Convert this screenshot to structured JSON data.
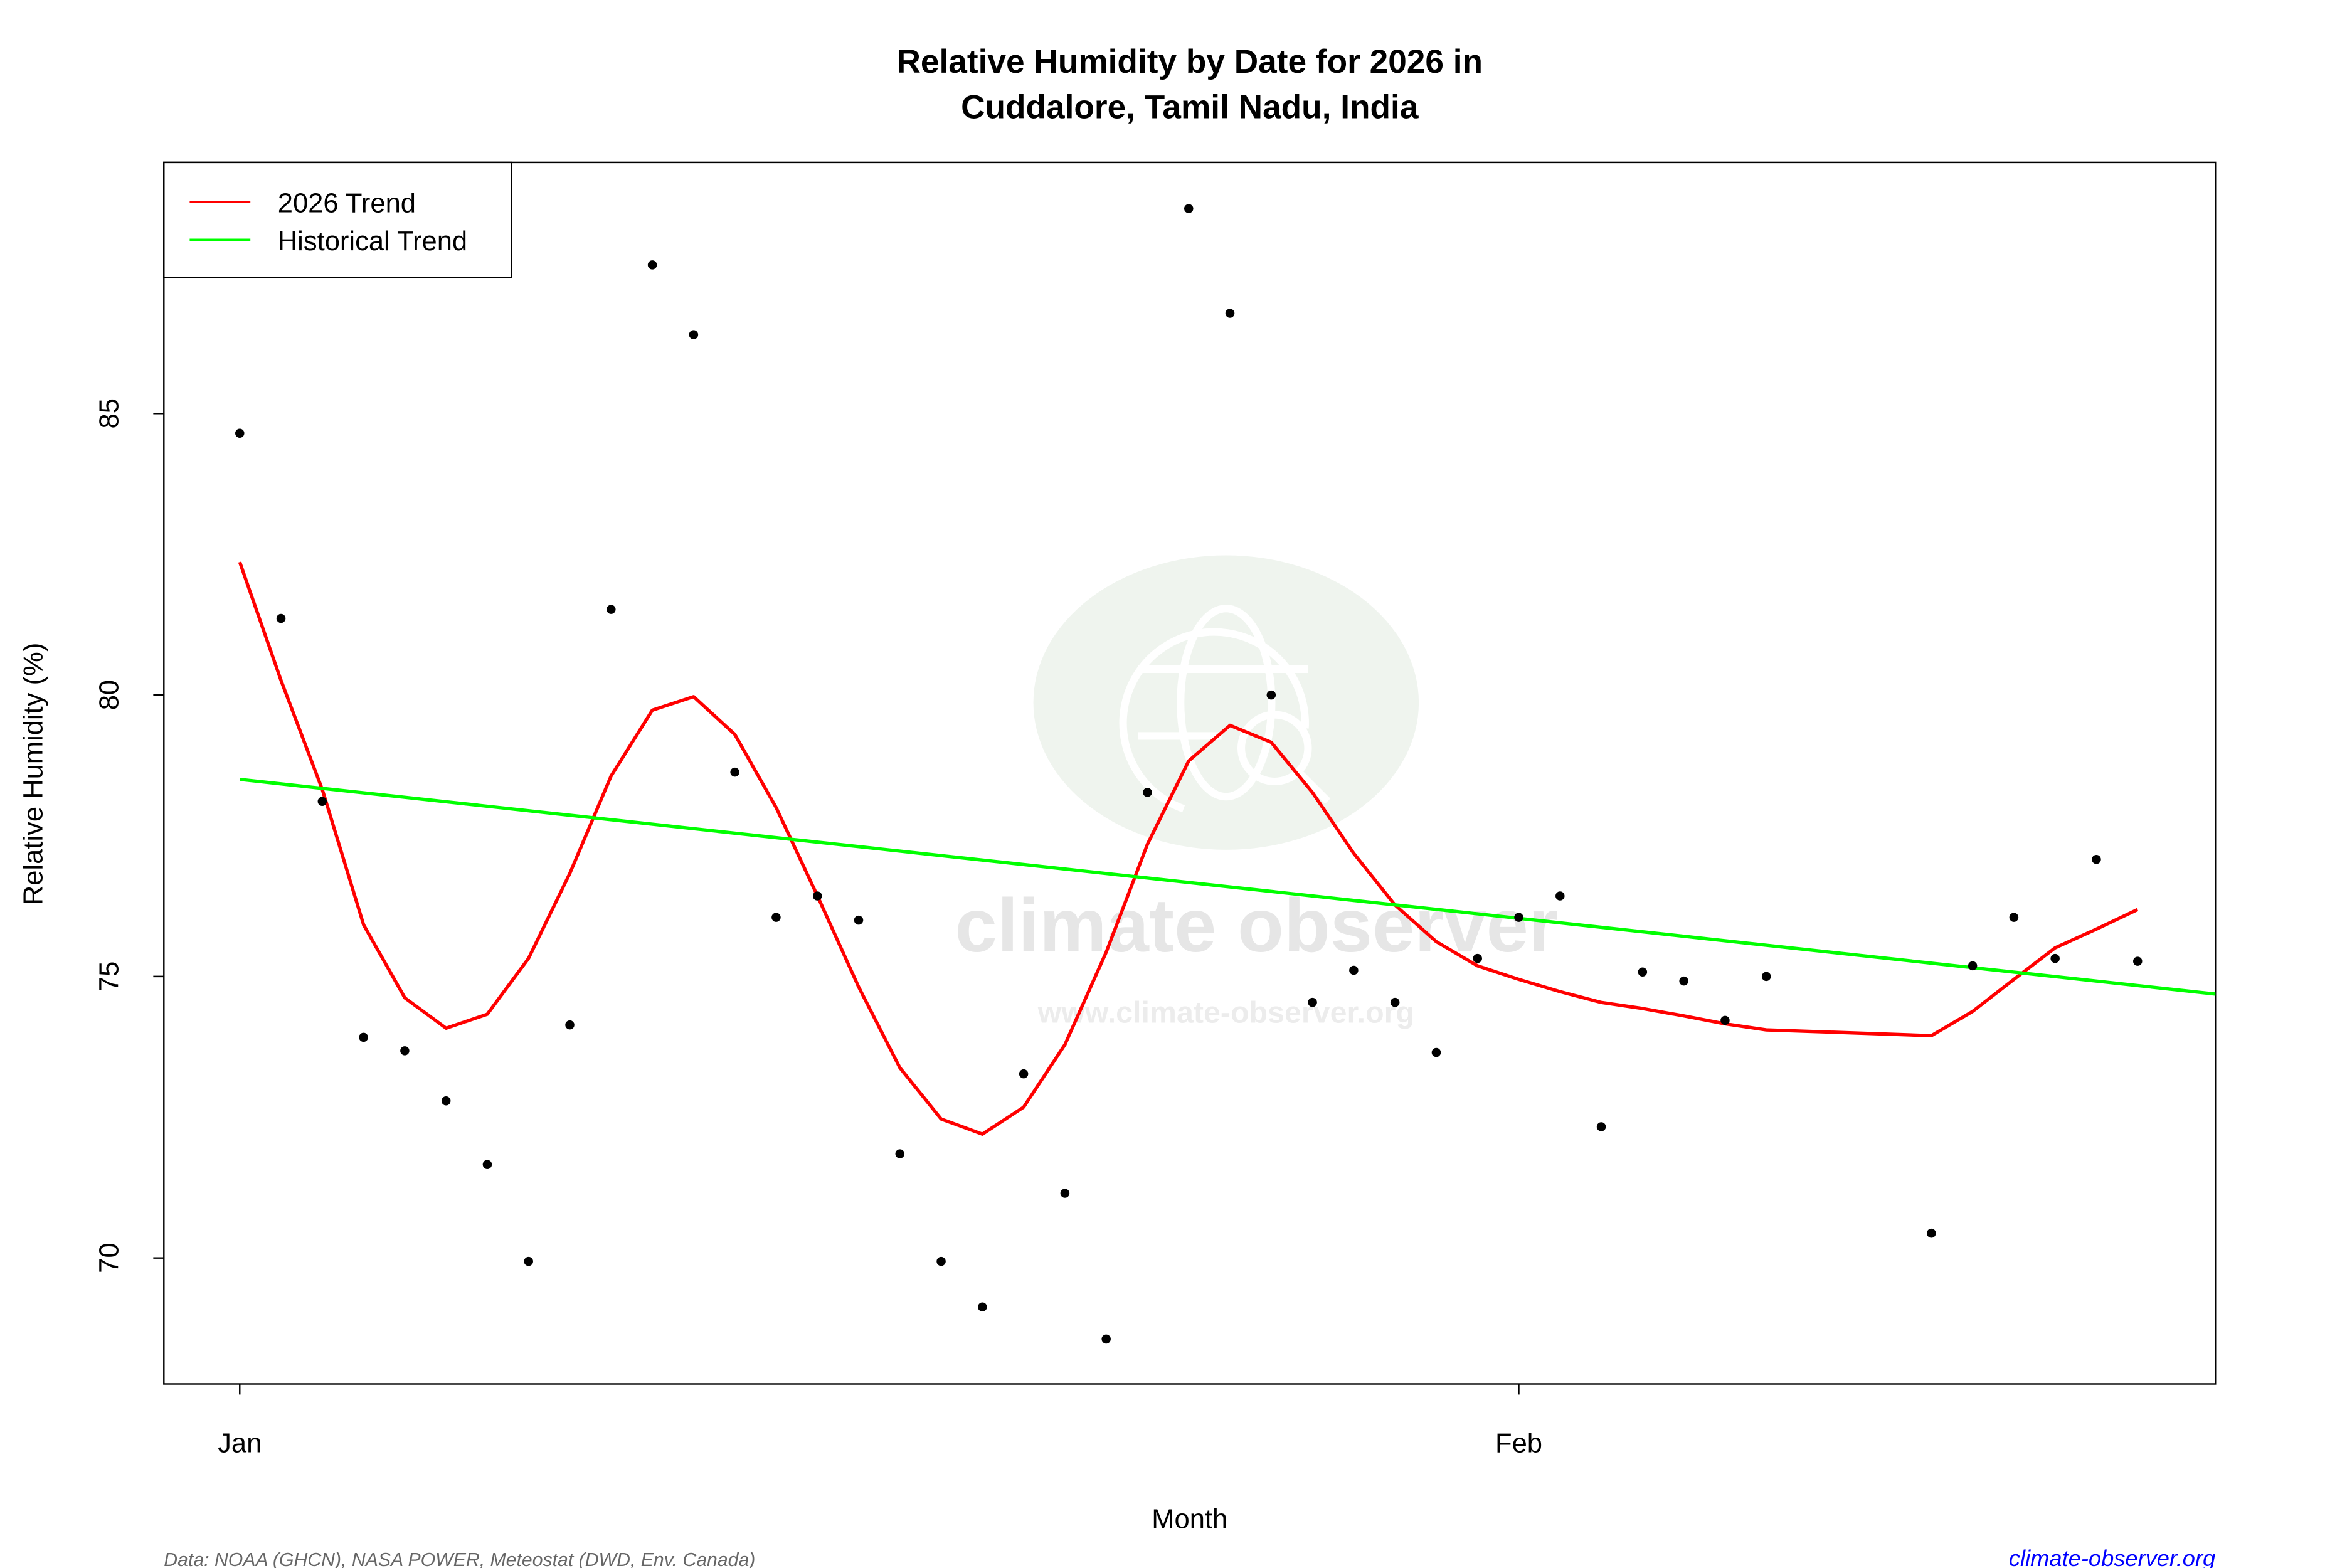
{
  "chart_data": {
    "type": "scatter",
    "title": "Relative Humidity by Date for 2026 in",
    "subtitle": "Cuddalore, Tamil Nadu, India",
    "xlabel": "Month",
    "ylabel": "Relative Humidity (%)",
    "x_ticks": [
      {
        "date": "2026-01-01",
        "label": "Jan"
      },
      {
        "date": "2026-02-01",
        "label": "Feb"
      }
    ],
    "y_ticks": [
      70,
      75,
      80,
      85
    ],
    "ylim": [
      67.8,
      89.4
    ],
    "grid": false,
    "legend": {
      "placement": "top-left",
      "entries": [
        {
          "label": "2026 Trend",
          "color": "#ff0000"
        },
        {
          "label": "Historical Trend",
          "color": "#00ff00"
        }
      ]
    },
    "observations": {
      "color": "#000000",
      "points": [
        {
          "x": "2026-01-01",
          "y": 84.65
        },
        {
          "x": "2026-01-02",
          "y": 81.36
        },
        {
          "x": "2026-01-03",
          "y": 78.11
        },
        {
          "x": "2026-01-04",
          "y": 73.92
        },
        {
          "x": "2026-01-05",
          "y": 73.68
        },
        {
          "x": "2026-01-06",
          "y": 72.79
        },
        {
          "x": "2026-01-07",
          "y": 71.66
        },
        {
          "x": "2026-01-08",
          "y": 69.94
        },
        {
          "x": "2026-01-09",
          "y": 74.14
        },
        {
          "x": "2026-01-10",
          "y": 81.52
        },
        {
          "x": "2026-01-11",
          "y": 87.64
        },
        {
          "x": "2026-01-12",
          "y": 86.4
        },
        {
          "x": "2026-01-13",
          "y": 78.63
        },
        {
          "x": "2026-01-14",
          "y": 76.05
        },
        {
          "x": "2026-01-15",
          "y": 76.43
        },
        {
          "x": "2026-01-16",
          "y": 76.0
        },
        {
          "x": "2026-01-17",
          "y": 71.85
        },
        {
          "x": "2026-01-18",
          "y": 69.94
        },
        {
          "x": "2026-01-19",
          "y": 69.13
        },
        {
          "x": "2026-01-20",
          "y": 73.27
        },
        {
          "x": "2026-01-21",
          "y": 71.15
        },
        {
          "x": "2026-01-22",
          "y": 68.56
        },
        {
          "x": "2026-01-23",
          "y": 78.27
        },
        {
          "x": "2026-01-24",
          "y": 88.64
        },
        {
          "x": "2026-01-25",
          "y": 86.78
        },
        {
          "x": "2026-01-26",
          "y": 80.0
        },
        {
          "x": "2026-01-27",
          "y": 74.54
        },
        {
          "x": "2026-01-28",
          "y": 75.11
        },
        {
          "x": "2026-01-29",
          "y": 74.54
        },
        {
          "x": "2026-01-30",
          "y": 73.65
        },
        {
          "x": "2026-01-31",
          "y": 75.32
        },
        {
          "x": "2026-02-01",
          "y": 76.05
        },
        {
          "x": "2026-02-02",
          "y": 76.43
        },
        {
          "x": "2026-02-03",
          "y": 72.33
        },
        {
          "x": "2026-02-04",
          "y": 75.08
        },
        {
          "x": "2026-02-05",
          "y": 74.92
        },
        {
          "x": "2026-02-06",
          "y": 74.22
        },
        {
          "x": "2026-02-07",
          "y": 75.0
        },
        {
          "x": "2026-02-11",
          "y": 70.44
        },
        {
          "x": "2026-02-12",
          "y": 75.19
        },
        {
          "x": "2026-02-13",
          "y": 76.05
        },
        {
          "x": "2026-02-14",
          "y": 75.32
        },
        {
          "x": "2026-02-15",
          "y": 77.08
        },
        {
          "x": "2026-02-16",
          "y": 75.27
        }
      ]
    },
    "series": [
      {
        "name": "2026 Trend",
        "type": "line",
        "color": "#ff0000",
        "points": [
          {
            "x": "2026-01-01",
            "y": 82.36
          },
          {
            "x": "2026-01-02",
            "y": 80.26
          },
          {
            "x": "2026-01-03",
            "y": 78.32
          },
          {
            "x": "2026-01-04",
            "y": 75.92
          },
          {
            "x": "2026-01-05",
            "y": 74.62
          },
          {
            "x": "2026-01-06",
            "y": 74.08
          },
          {
            "x": "2026-01-07",
            "y": 74.33
          },
          {
            "x": "2026-01-08",
            "y": 75.32
          },
          {
            "x": "2026-01-09",
            "y": 76.83
          },
          {
            "x": "2026-01-10",
            "y": 78.56
          },
          {
            "x": "2026-01-11",
            "y": 79.73
          },
          {
            "x": "2026-01-12",
            "y": 79.97
          },
          {
            "x": "2026-01-13",
            "y": 79.3
          },
          {
            "x": "2026-01-14",
            "y": 78.0
          },
          {
            "x": "2026-01-15",
            "y": 76.43
          },
          {
            "x": "2026-01-16",
            "y": 74.81
          },
          {
            "x": "2026-01-17",
            "y": 73.38
          },
          {
            "x": "2026-01-18",
            "y": 72.47
          },
          {
            "x": "2026-01-19",
            "y": 72.2
          },
          {
            "x": "2026-01-20",
            "y": 72.68
          },
          {
            "x": "2026-01-21",
            "y": 73.79
          },
          {
            "x": "2026-01-22",
            "y": 75.43
          },
          {
            "x": "2026-01-23",
            "y": 77.35
          },
          {
            "x": "2026-01-24",
            "y": 78.83
          },
          {
            "x": "2026-01-25",
            "y": 79.46
          },
          {
            "x": "2026-01-26",
            "y": 79.16
          },
          {
            "x": "2026-01-27",
            "y": 78.27
          },
          {
            "x": "2026-01-28",
            "y": 77.19
          },
          {
            "x": "2026-01-29",
            "y": 76.27
          },
          {
            "x": "2026-01-30",
            "y": 75.62
          },
          {
            "x": "2026-01-31",
            "y": 75.19
          },
          {
            "x": "2026-02-01",
            "y": 74.95
          },
          {
            "x": "2026-02-02",
            "y": 74.73
          },
          {
            "x": "2026-02-03",
            "y": 74.54
          },
          {
            "x": "2026-02-04",
            "y": 74.43
          },
          {
            "x": "2026-02-05",
            "y": 74.3
          },
          {
            "x": "2026-02-06",
            "y": 74.16
          },
          {
            "x": "2026-02-07",
            "y": 74.05
          },
          {
            "x": "2026-02-11",
            "y": 73.95
          },
          {
            "x": "2026-02-12",
            "y": 74.38
          },
          {
            "x": "2026-02-13",
            "y": 74.95
          },
          {
            "x": "2026-02-14",
            "y": 75.51
          },
          {
            "x": "2026-02-15",
            "y": 75.84
          },
          {
            "x": "2026-02-16",
            "y": 76.19
          }
        ]
      },
      {
        "name": "Historical Trend",
        "type": "line",
        "color": "#00ff00",
        "points": [
          {
            "x": "2026-01-01",
            "y": 78.5
          },
          {
            "x": "2026-02-18",
            "y": 74.68
          }
        ]
      }
    ]
  },
  "footer": {
    "source": "Data: NOAA (GHCN), NASA POWER, Meteostat (DWD, Env. Canada)",
    "site": "climate-observer.org",
    "site_color": "#0000ff"
  },
  "watermark": {
    "name": "climate observer",
    "url": "www.climate-observer.org"
  }
}
